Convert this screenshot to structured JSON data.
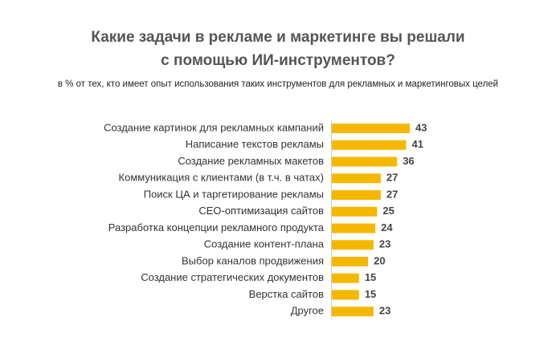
{
  "chart_data": {
    "type": "barh",
    "title": [
      "Какие задачи в рекламе и маркетинге вы решали",
      "с помощью ИИ-инструментов?"
    ],
    "subtitle": "в % от тех, кто имеет опыт использования таких инструментов для рекламных и маркетинговых целей",
    "categories": [
      "Создание картинок для рекламных кампаний",
      "Написание текстов рекламы",
      "Создание рекламных макетов",
      "Коммуникация с клиентами (в т.ч. в чатах)",
      "Поиск ЦА и таргетирование рекламы",
      "СЕО-оптимизация сайтов",
      "Разработка концепции рекламного продукта",
      "Создание контент-плана",
      "Выбор каналов продвижения",
      "Создание стратегических документов",
      "Верстка сайтов",
      "Другое"
    ],
    "values": [
      43,
      41,
      36,
      27,
      27,
      25,
      24,
      23,
      20,
      15,
      15,
      23
    ],
    "color": "#f5b800"
  }
}
